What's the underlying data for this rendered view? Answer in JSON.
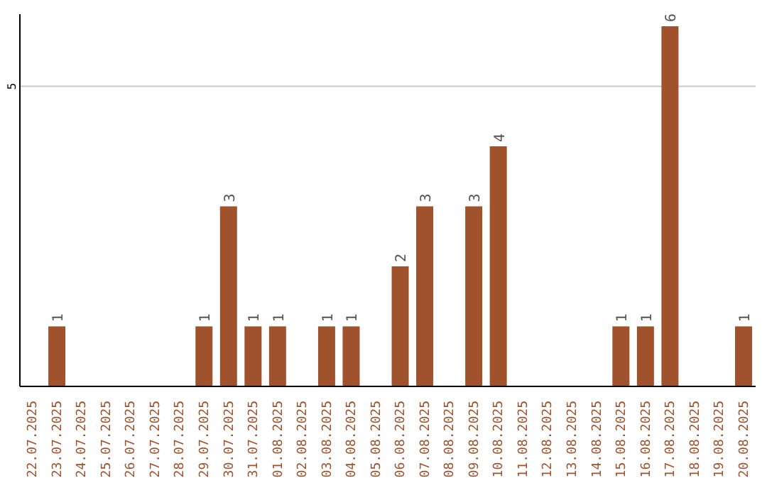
{
  "chart_data": {
    "type": "bar",
    "categories": [
      "22.07.2025",
      "23.07.2025",
      "24.07.2025",
      "25.07.2025",
      "26.07.2025",
      "27.07.2025",
      "28.07.2025",
      "29.07.2025",
      "30.07.2025",
      "31.07.2025",
      "01.08.2025",
      "02.08.2025",
      "03.08.2025",
      "04.08.2025",
      "05.08.2025",
      "06.08.2025",
      "07.08.2025",
      "08.08.2025",
      "09.08.2025",
      "10.08.2025",
      "11.08.2025",
      "12.08.2025",
      "13.08.2025",
      "14.08.2025",
      "15.08.2025",
      "16.08.2025",
      "17.08.2025",
      "18.08.2025",
      "19.08.2025",
      "20.08.2025"
    ],
    "values": [
      0,
      1,
      0,
      0,
      0,
      0,
      0,
      1,
      3,
      1,
      1,
      0,
      1,
      1,
      0,
      2,
      3,
      0,
      3,
      4,
      0,
      0,
      0,
      0,
      1,
      1,
      6,
      0,
      0,
      1
    ],
    "value_labels": [
      null,
      "1",
      null,
      null,
      null,
      null,
      null,
      "1",
      "3",
      "1",
      "1",
      null,
      "1",
      "1",
      null,
      "2",
      "3",
      null,
      "3",
      "4",
      null,
      null,
      null,
      null,
      "1",
      "1",
      "6",
      null,
      null,
      "1"
    ],
    "color": "#a0522d",
    "ylim": [
      0,
      6.2
    ],
    "yticks": [
      5
    ],
    "grid": "y"
  }
}
